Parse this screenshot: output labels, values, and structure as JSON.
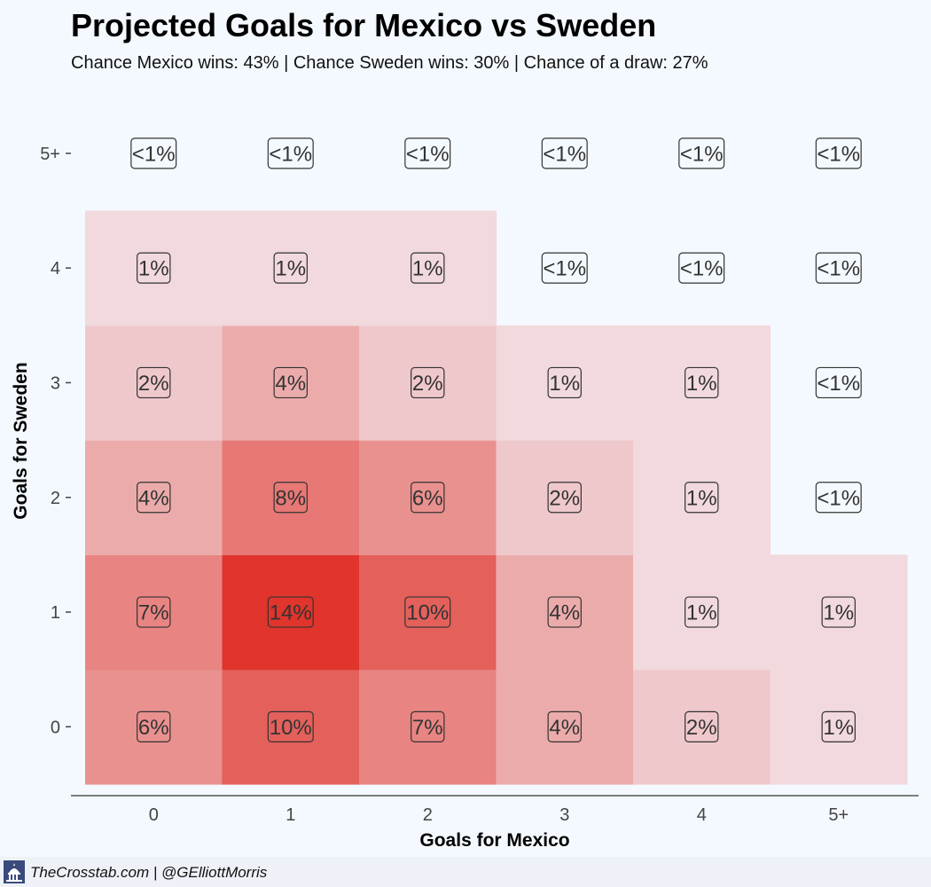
{
  "chart_data": {
    "type": "heatmap",
    "title": "Projected Goals for Mexico vs Sweden",
    "subtitle": "Chance Mexico wins: 43% | Chance Sweden wins: 30% | Chance of a draw: 27%",
    "xlabel": "Goals for Mexico",
    "ylabel": "Goals for Sweden",
    "x_categories": [
      "0",
      "1",
      "2",
      "3",
      "4",
      "5+"
    ],
    "y_categories": [
      "0",
      "1",
      "2",
      "3",
      "4",
      "5+"
    ],
    "grid": false,
    "color_low": "#f3f0f5",
    "color_high": "#e0342c",
    "cells": [
      {
        "x": "0",
        "y": "0",
        "value": 6,
        "label": "6%"
      },
      {
        "x": "1",
        "y": "0",
        "value": 10,
        "label": "10%"
      },
      {
        "x": "2",
        "y": "0",
        "value": 7,
        "label": "7%"
      },
      {
        "x": "3",
        "y": "0",
        "value": 4,
        "label": "4%"
      },
      {
        "x": "4",
        "y": "0",
        "value": 2,
        "label": "2%"
      },
      {
        "x": "5+",
        "y": "0",
        "value": 1,
        "label": "1%"
      },
      {
        "x": "0",
        "y": "1",
        "value": 7,
        "label": "7%"
      },
      {
        "x": "1",
        "y": "1",
        "value": 14,
        "label": "14%"
      },
      {
        "x": "2",
        "y": "1",
        "value": 10,
        "label": "10%"
      },
      {
        "x": "3",
        "y": "1",
        "value": 4,
        "label": "4%"
      },
      {
        "x": "4",
        "y": "1",
        "value": 1,
        "label": "1%"
      },
      {
        "x": "5+",
        "y": "1",
        "value": 1,
        "label": "1%"
      },
      {
        "x": "0",
        "y": "2",
        "value": 4,
        "label": "4%"
      },
      {
        "x": "1",
        "y": "2",
        "value": 8,
        "label": "8%"
      },
      {
        "x": "2",
        "y": "2",
        "value": 6,
        "label": "6%"
      },
      {
        "x": "3",
        "y": "2",
        "value": 2,
        "label": "2%"
      },
      {
        "x": "4",
        "y": "2",
        "value": 1,
        "label": "1%"
      },
      {
        "x": "5+",
        "y": "2",
        "value": 0,
        "label": "<1%"
      },
      {
        "x": "0",
        "y": "3",
        "value": 2,
        "label": "2%"
      },
      {
        "x": "1",
        "y": "3",
        "value": 4,
        "label": "4%"
      },
      {
        "x": "2",
        "y": "3",
        "value": 2,
        "label": "2%"
      },
      {
        "x": "3",
        "y": "3",
        "value": 1,
        "label": "1%"
      },
      {
        "x": "4",
        "y": "3",
        "value": 1,
        "label": "1%"
      },
      {
        "x": "5+",
        "y": "3",
        "value": 0,
        "label": "<1%"
      },
      {
        "x": "0",
        "y": "4",
        "value": 1,
        "label": "1%"
      },
      {
        "x": "1",
        "y": "4",
        "value": 1,
        "label": "1%"
      },
      {
        "x": "2",
        "y": "4",
        "value": 1,
        "label": "1%"
      },
      {
        "x": "3",
        "y": "4",
        "value": 0,
        "label": "<1%"
      },
      {
        "x": "4",
        "y": "4",
        "value": 0,
        "label": "<1%"
      },
      {
        "x": "5+",
        "y": "4",
        "value": 0,
        "label": "<1%"
      },
      {
        "x": "0",
        "y": "5+",
        "value": 0,
        "label": "<1%"
      },
      {
        "x": "1",
        "y": "5+",
        "value": 0,
        "label": "<1%"
      },
      {
        "x": "2",
        "y": "5+",
        "value": 0,
        "label": "<1%"
      },
      {
        "x": "3",
        "y": "5+",
        "value": 0,
        "label": "<1%"
      },
      {
        "x": "4",
        "y": "5+",
        "value": 0,
        "label": "<1%"
      },
      {
        "x": "5+",
        "y": "5+",
        "value": 0,
        "label": "<1%"
      }
    ]
  },
  "footer": {
    "credit": "TheCrosstab.com | @GElliottMorris",
    "logo_icon": "capitol-dome-icon"
  }
}
